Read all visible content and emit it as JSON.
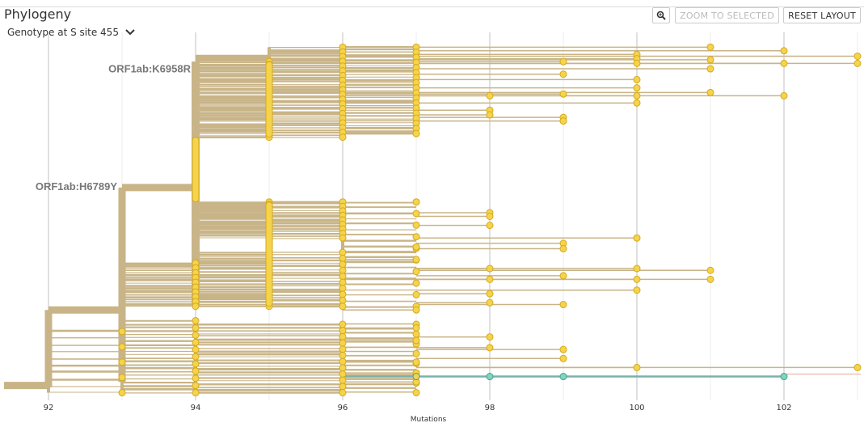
{
  "panel": {
    "title": "Phylogeny",
    "color_by_label": "Genotype at S site 455"
  },
  "toolbar": {
    "zoom_icon": "magnifier-icon",
    "zoom_to_selected_label": "ZOOM TO SELECTED",
    "reset_layout_label": "RESET LAYOUT"
  },
  "colors": {
    "branch": "#c8b487",
    "node": "#f5d44c",
    "node_stroke": "#d4a91c",
    "highlight_branch": "#79b3a8",
    "highlight_node": "#7dd6c0",
    "grid": "#d6d6d6"
  },
  "chart_data": {
    "type": "tree",
    "xlabel": "Mutations",
    "x_ticks": [
      92,
      94,
      96,
      98,
      100,
      102
    ],
    "xlim": [
      91.2,
      103.2
    ],
    "branch_labels": [
      {
        "text": "ORF1ab:K6958R",
        "x": 94,
        "y": 0.113
      },
      {
        "text": "ORF1ab:H6789Y",
        "x": 93,
        "y": 0.44
      }
    ],
    "tips": [
      {
        "x": 101,
        "y": 0.03
      },
      {
        "x": 102,
        "y": 0.04
      },
      {
        "x": 103,
        "y": 0.055
      },
      {
        "x": 103,
        "y": 0.075
      },
      {
        "x": 102,
        "y": 0.075
      },
      {
        "x": 101,
        "y": 0.065
      },
      {
        "x": 100,
        "y": 0.05
      },
      {
        "x": 100,
        "y": 0.062
      },
      {
        "x": 100,
        "y": 0.075
      },
      {
        "x": 101,
        "y": 0.09
      },
      {
        "x": 99,
        "y": 0.07
      },
      {
        "x": 99,
        "y": 0.105
      },
      {
        "x": 100,
        "y": 0.12
      },
      {
        "x": 100,
        "y": 0.143
      },
      {
        "x": 101,
        "y": 0.156
      },
      {
        "x": 102,
        "y": 0.165
      },
      {
        "x": 100,
        "y": 0.165
      },
      {
        "x": 99,
        "y": 0.16
      },
      {
        "x": 98,
        "y": 0.165
      },
      {
        "x": 100,
        "y": 0.185
      },
      {
        "x": 98,
        "y": 0.205
      },
      {
        "x": 99,
        "y": 0.225
      },
      {
        "x": 99,
        "y": 0.235
      },
      {
        "x": 98,
        "y": 0.218
      },
      {
        "x": 98,
        "y": 0.49
      },
      {
        "x": 98,
        "y": 0.5
      },
      {
        "x": 98,
        "y": 0.525
      },
      {
        "x": 100,
        "y": 0.56
      },
      {
        "x": 99,
        "y": 0.575
      },
      {
        "x": 99,
        "y": 0.59
      },
      {
        "x": 97,
        "y": 0.585
      },
      {
        "x": 97,
        "y": 0.62
      },
      {
        "x": 98,
        "y": 0.645
      },
      {
        "x": 100,
        "y": 0.645
      },
      {
        "x": 101,
        "y": 0.65
      },
      {
        "x": 101,
        "y": 0.675
      },
      {
        "x": 100,
        "y": 0.675
      },
      {
        "x": 99,
        "y": 0.665
      },
      {
        "x": 98,
        "y": 0.675
      },
      {
        "x": 100,
        "y": 0.705
      },
      {
        "x": 98,
        "y": 0.715
      },
      {
        "x": 98,
        "y": 0.74
      },
      {
        "x": 99,
        "y": 0.745
      },
      {
        "x": 97,
        "y": 0.76
      },
      {
        "x": 97,
        "y": 0.81
      },
      {
        "x": 97,
        "y": 0.845
      },
      {
        "x": 98,
        "y": 0.835
      },
      {
        "x": 98,
        "y": 0.865
      },
      {
        "x": 99,
        "y": 0.87
      },
      {
        "x": 99,
        "y": 0.895
      },
      {
        "x": 100,
        "y": 0.92
      },
      {
        "x": 103,
        "y": 0.92
      },
      {
        "x": 97,
        "y": 0.905
      },
      {
        "x": 97,
        "y": 0.935
      },
      {
        "x": 97,
        "y": 0.96
      }
    ],
    "highlight_path": [
      {
        "x": 96,
        "y": 0.945
      },
      {
        "x": 97,
        "y": 0.945
      },
      {
        "x": 98,
        "y": 0.945
      },
      {
        "x": 99,
        "y": 0.945
      },
      {
        "x": 102,
        "y": 0.945
      }
    ]
  }
}
